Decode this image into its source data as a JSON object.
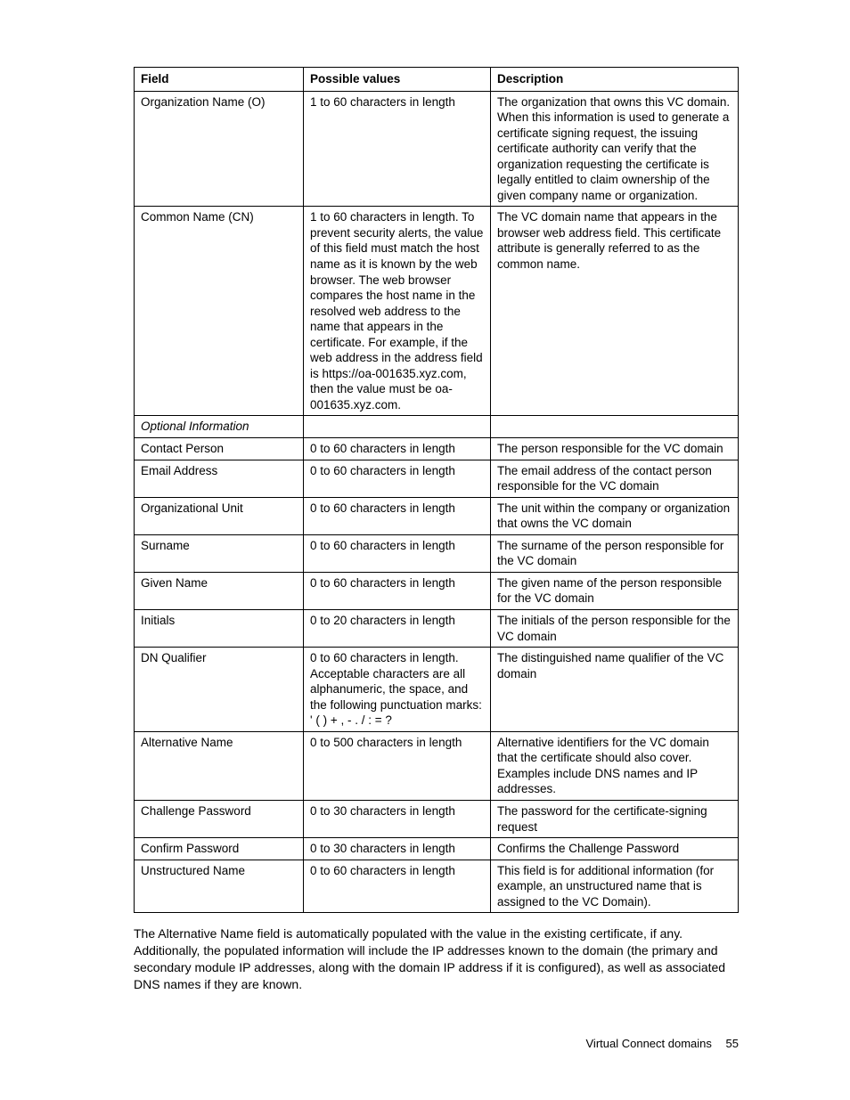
{
  "table": {
    "headers": [
      "Field",
      "Possible values",
      "Description"
    ],
    "rows": [
      {
        "field": "Organization Name (O)",
        "values": "1 to 60 characters in length",
        "desc": "The organization that owns this VC domain. When this information is used to generate a certificate signing request, the issuing certificate authority can verify that the organization requesting the certificate is legally entitled to claim ownership of the given company name or organization."
      },
      {
        "field": "Common Name (CN)",
        "values": "1 to 60 characters in length. To prevent security alerts, the value of this field must match the host name as it is known by the web browser. The web browser compares the host name in the resolved web address to the name that appears in the certificate. For example, if the web address in the address field is https://oa-001635.xyz.com, then the value must be oa-001635.xyz.com.",
        "desc": "The VC domain name that appears in the browser web address field. This certificate attribute is generally referred to as the common name."
      },
      {
        "section": true,
        "field": "Optional Information",
        "values": "",
        "desc": ""
      },
      {
        "field": "Contact Person",
        "values": "0 to 60 characters in length",
        "desc": "The person responsible for the VC domain"
      },
      {
        "field": "Email Address",
        "values": "0 to 60 characters in length",
        "desc": "The email address of the contact person responsible for the VC domain"
      },
      {
        "field": "Organizational Unit",
        "values": "0 to 60 characters in length",
        "desc": "The unit within the company or organization that owns the VC domain"
      },
      {
        "field": "Surname",
        "values": "0 to 60 characters in length",
        "desc": "The surname of the person responsible for the VC domain"
      },
      {
        "field": "Given Name",
        "values": "0 to 60 characters in length",
        "desc": "The given name of the person responsible for the VC domain"
      },
      {
        "field": "Initials",
        "values": "0 to 20 characters in length",
        "desc": "The initials of the person responsible for the VC domain"
      },
      {
        "field": "DN Qualifier",
        "values": "0 to 60 characters in length. Acceptable characters are all alphanumeric, the space, and the following punctuation marks: ' ( ) + , - . / : = ?",
        "desc": "The distinguished name qualifier of the VC domain"
      },
      {
        "field": "Alternative Name",
        "values": "0 to 500 characters in length",
        "desc": "Alternative identifiers for the VC domain that the certificate should also cover. Examples include DNS names and IP addresses."
      },
      {
        "field": "Challenge Password",
        "values": "0 to 30 characters in length",
        "desc": "The password for the certificate-signing request"
      },
      {
        "field": "Confirm Password",
        "values": "0 to 30 characters in length",
        "desc": "Confirms the Challenge Password"
      },
      {
        "field": "Unstructured Name",
        "values": "0 to 60 characters in length",
        "desc": "This field is for additional information (for example, an unstructured name that is assigned to the VC Domain)."
      }
    ]
  },
  "paragraph": "The Alternative Name field is automatically populated with the value in the existing certificate, if any. Additionally, the populated information will include the IP addresses known to the domain (the primary and secondary module IP addresses, along with the domain IP address if it is configured), as well as associated DNS names if they are known.",
  "footer": {
    "label": "Virtual Connect domains",
    "page": "55"
  }
}
